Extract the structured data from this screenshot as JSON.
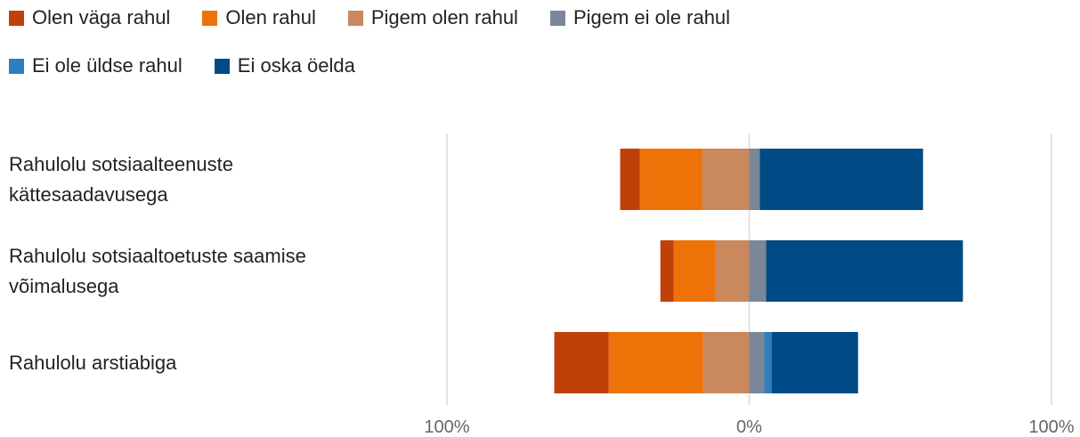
{
  "chart_data": {
    "type": "diverging_bar",
    "categories": [
      "Rahulolu sotsiaalteenuste kättesaadavusega",
      "Rahulolu sotsiaaltoetuste saamise võimalusega",
      "Rahulolu arstiabiga"
    ],
    "series": [
      {
        "name": "Olen väga rahul",
        "color": "#c0400a",
        "values": [
          -6.5,
          -4.4,
          -18
        ]
      },
      {
        "name": "Olen rahul",
        "color": "#ed7308",
        "values": [
          -20.6,
          -13.8,
          -31.2
        ]
      },
      {
        "name": "Pigem olen rahul",
        "color": "#c9895c",
        "values": [
          -15.6,
          -11.2,
          -15.3
        ]
      },
      {
        "name": "Pigem ei ole rahul",
        "color": "#7a8798",
        "values": [
          3.5,
          5.6,
          5
        ]
      },
      {
        "name": "Ei ole üldse rahul",
        "color": "#2e7fc0",
        "values": [
          0,
          0,
          2.4
        ]
      },
      {
        "name": "Ei oska öelda",
        "color": "#004a85",
        "values": [
          54,
          65.1,
          28.6
        ]
      }
    ],
    "xlim": [
      -100,
      100
    ],
    "xticks": [
      {
        "value": -100,
        "label": "100%"
      },
      {
        "value": 0,
        "label": "0%"
      },
      {
        "value": 100,
        "label": "100%"
      }
    ],
    "grid": true
  }
}
